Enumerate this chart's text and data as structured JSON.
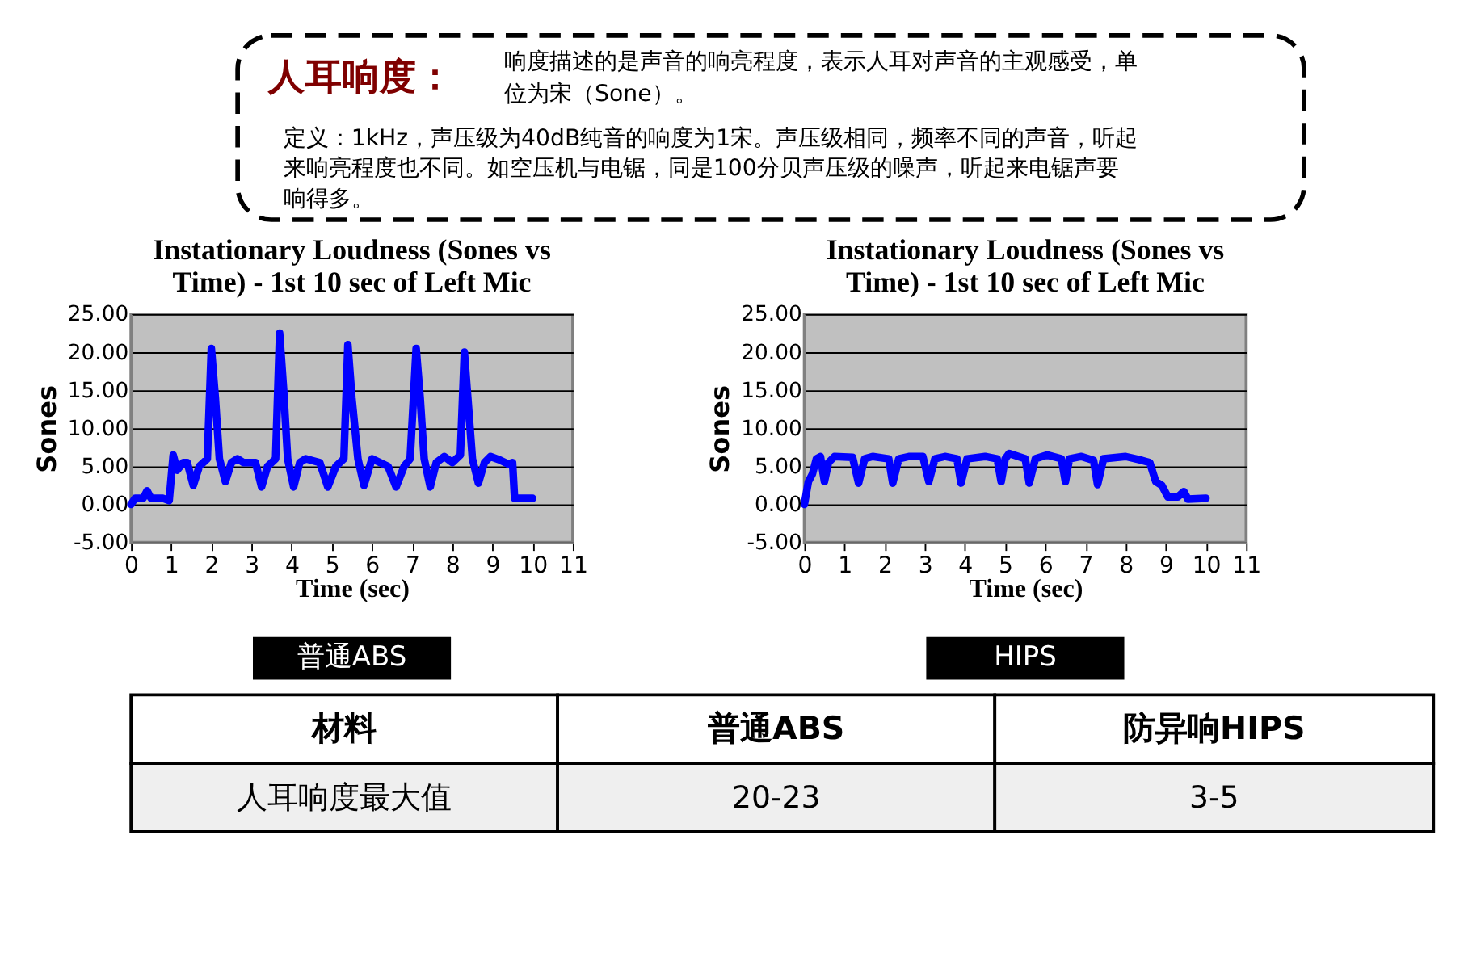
{
  "chart_data": [
    {
      "type": "other",
      "title": "人耳响度：",
      "annotations": [
        "响度描述的是声音的响亮程度，表示人耳对声音的主观感受，单位为宋（Sone）。",
        "定义：1kHz，声压级为40dB纯音的响度为1宋。声压级相同，频率不同的声音，听起来响亮程度也不同。如空压机与电锯，同是100分贝声压级的噪声，听起来电锯声要响得多。"
      ]
    },
    {
      "type": "line",
      "title": "Instationary Loudness (Sones vs Time) - 1st 10 sec of Left Mic",
      "xlabel": "Time (sec)",
      "ylabel": "Sones",
      "annotations": [
        "普通ABS"
      ],
      "xlim": [
        0,
        11
      ],
      "ylim": [
        -5,
        25
      ],
      "xticks": [
        0,
        1,
        2,
        3,
        4,
        5,
        6,
        7,
        8,
        9,
        10,
        11
      ],
      "yticks": [
        {
          "value": -5,
          "label": "-5.00"
        },
        {
          "value": 0,
          "label": "0.00"
        },
        {
          "value": 5,
          "label": "5.00"
        },
        {
          "value": 10,
          "label": "10.00"
        },
        {
          "value": 15,
          "label": "15.00"
        },
        {
          "value": 20,
          "label": "20.00"
        },
        {
          "value": 25,
          "label": "25.00"
        }
      ],
      "grid": "y",
      "series": [
        {
          "color": "#0000ff",
          "x": [
            0,
            0.1,
            0.3,
            0.4,
            0.5,
            0.8,
            0.95,
            1.05,
            1.15,
            1.3,
            1.4,
            1.55,
            1.7,
            1.9,
            2.0,
            2.1,
            2.2,
            2.35,
            2.5,
            2.65,
            2.8,
            3.1,
            3.25,
            3.4,
            3.6,
            3.7,
            3.8,
            3.9,
            4.05,
            4.2,
            4.35,
            4.7,
            4.9,
            5.1,
            5.3,
            5.4,
            5.5,
            5.65,
            5.8,
            6.0,
            6.2,
            6.4,
            6.6,
            6.8,
            6.95,
            7.1,
            7.2,
            7.3,
            7.45,
            7.6,
            7.8,
            8.0,
            8.2,
            8.3,
            8.4,
            8.5,
            8.65,
            8.8,
            8.95,
            9.2,
            9.4,
            9.5,
            9.55,
            10.0
          ],
          "values": [
            0,
            0.8,
            0.8,
            1.8,
            0.8,
            0.8,
            0.5,
            6.5,
            4.5,
            5.5,
            5.5,
            2.5,
            5,
            6,
            20.5,
            14,
            6,
            3,
            5.5,
            6,
            5.5,
            5.5,
            2.3,
            5,
            6,
            22.5,
            15,
            6,
            2.3,
            5.5,
            6,
            5.5,
            2.3,
            5,
            6,
            21,
            14,
            6,
            2.5,
            6,
            5.5,
            5,
            2.3,
            5,
            6,
            20.5,
            14,
            6,
            2.3,
            5.5,
            6.3,
            5.5,
            6.5,
            20,
            13,
            6,
            2.8,
            5.5,
            6.3,
            5.8,
            5.3,
            5.5,
            0.8,
            0.8
          ]
        }
      ]
    },
    {
      "type": "line",
      "title": "Instationary Loudness (Sones vs Time) - 1st 10 sec of Left Mic",
      "xlabel": "Time (sec)",
      "ylabel": "Sones",
      "annotations": [
        "HIPS"
      ],
      "xlim": [
        0,
        11
      ],
      "ylim": [
        -5,
        25
      ],
      "xticks": [
        0,
        1,
        2,
        3,
        4,
        5,
        6,
        7,
        8,
        9,
        10,
        11
      ],
      "yticks": [
        {
          "value": -5,
          "label": "-5.00"
        },
        {
          "value": 0,
          "label": "0.00"
        },
        {
          "value": 5,
          "label": "5.00"
        },
        {
          "value": 10,
          "label": "10.00"
        },
        {
          "value": 15,
          "label": "15.00"
        },
        {
          "value": 20,
          "label": "20.00"
        },
        {
          "value": 25,
          "label": "25.00"
        }
      ],
      "grid": "y",
      "series": [
        {
          "color": "#0000ff",
          "x": [
            0,
            0.1,
            0.2,
            0.3,
            0.4,
            0.5,
            0.6,
            0.75,
            1.2,
            1.35,
            1.5,
            1.7,
            2.1,
            2.2,
            2.35,
            2.6,
            2.95,
            3.1,
            3.25,
            3.5,
            3.8,
            3.9,
            4.05,
            4.5,
            4.8,
            4.9,
            5.0,
            5.1,
            5.5,
            5.6,
            5.75,
            6.05,
            6.4,
            6.5,
            6.6,
            6.9,
            7.2,
            7.3,
            7.45,
            8.0,
            8.4,
            8.6,
            8.75,
            8.9,
            9.05,
            9.3,
            9.45,
            9.55,
            10.0
          ],
          "values": [
            0,
            3,
            4,
            6,
            6.3,
            3,
            5.5,
            6.3,
            6.2,
            2.8,
            6,
            6.3,
            6,
            2.8,
            6,
            6.3,
            6.3,
            3,
            6,
            6.3,
            6,
            2.8,
            6,
            6.3,
            6,
            3,
            6,
            6.7,
            6,
            2.8,
            6,
            6.5,
            6,
            3,
            6,
            6.3,
            5.8,
            2.6,
            6,
            6.3,
            5.8,
            5.5,
            3,
            2.5,
            1,
            1,
            1.7,
            0.7,
            0.8
          ]
        }
      ]
    },
    {
      "type": "other",
      "categories": [
        "材料",
        "普通ABS",
        "防异响HIPS"
      ],
      "annotations": [
        "人耳响度最大值",
        "20-23",
        "3-5"
      ]
    }
  ]
}
